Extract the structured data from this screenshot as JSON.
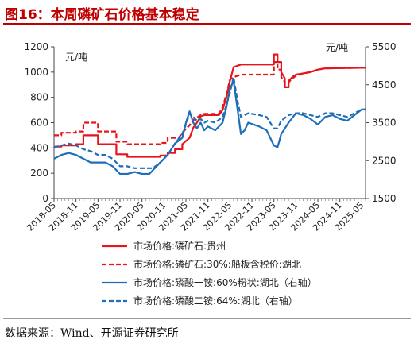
{
  "header": {
    "title": "图16：本周磷矿石价格基本稳定"
  },
  "footer": {
    "source": "数据来源：Wind、开源证券研究所"
  },
  "colors": {
    "title": "#c00000",
    "red": "#e8141c",
    "blue": "#1f6fb8"
  },
  "chart_data": {
    "type": "line",
    "title": "",
    "left_axis": {
      "unit_label": "元/吨",
      "range": [
        0,
        1200
      ],
      "ticks": [
        0,
        200,
        400,
        600,
        800,
        1000,
        1200
      ]
    },
    "right_axis": {
      "unit_label": "元/吨",
      "range": [
        1500,
        5500
      ],
      "ticks": [
        1500,
        2500,
        3500,
        4500,
        5500
      ]
    },
    "x_axis": {
      "range": [
        "2018-05",
        "2025-06"
      ],
      "tick_labels": [
        "2018-05",
        "2018-11",
        "2019-05",
        "2019-11",
        "2020-05",
        "2020-11",
        "2021-05",
        "2021-11",
        "2022-05",
        "2022-11",
        "2023-05",
        "2023-11",
        "2024-05",
        "2024-11",
        "2025-05"
      ]
    },
    "grid": false,
    "legend": {
      "placement": "bottom"
    },
    "series": [
      {
        "name": "市场价格:磷矿石:贵州",
        "axis": "left",
        "style": "solid",
        "color": "#e8141c",
        "points": [
          [
            "2018-05",
            410
          ],
          [
            "2018-07",
            410
          ],
          [
            "2018-07",
            420
          ],
          [
            "2018-11",
            420
          ],
          [
            "2018-11",
            430
          ],
          [
            "2019-01",
            430
          ],
          [
            "2019-01",
            500
          ],
          [
            "2019-05",
            500
          ],
          [
            "2019-05",
            430
          ],
          [
            "2019-10",
            430
          ],
          [
            "2019-10",
            350
          ],
          [
            "2020-01",
            350
          ],
          [
            "2020-01",
            330
          ],
          [
            "2020-10",
            330
          ],
          [
            "2020-10",
            340
          ],
          [
            "2020-12",
            340
          ],
          [
            "2020-12",
            360
          ],
          [
            "2021-02",
            360
          ],
          [
            "2021-02",
            390
          ],
          [
            "2021-04",
            390
          ],
          [
            "2021-04",
            430
          ],
          [
            "2021-06",
            480
          ],
          [
            "2021-07",
            560
          ],
          [
            "2021-08",
            600
          ],
          [
            "2021-09",
            650
          ],
          [
            "2021-10",
            660
          ],
          [
            "2022-02",
            660
          ],
          [
            "2022-03",
            700
          ],
          [
            "2022-04",
            800
          ],
          [
            "2022-05",
            930
          ],
          [
            "2022-06",
            1040
          ],
          [
            "2022-07",
            1050
          ],
          [
            "2022-08",
            1060
          ],
          [
            "2022-09",
            1060
          ],
          [
            "2023-05",
            1060
          ],
          [
            "2023-05",
            1140
          ],
          [
            "2023-06",
            1140
          ],
          [
            "2023-06",
            1080
          ],
          [
            "2023-07",
            1080
          ],
          [
            "2023-07",
            1000
          ],
          [
            "2023-08",
            950
          ],
          [
            "2023-08",
            880
          ],
          [
            "2023-09",
            880
          ],
          [
            "2023-09",
            930
          ],
          [
            "2023-10",
            960
          ],
          [
            "2023-11",
            980
          ],
          [
            "2024-01",
            990
          ],
          [
            "2024-03",
            1000
          ],
          [
            "2024-05",
            1020
          ],
          [
            "2024-07",
            1030
          ],
          [
            "2025-06",
            1035
          ]
        ]
      },
      {
        "name": "市场价格:磷矿石:30%:船板含税价:湖北",
        "axis": "left",
        "style": "dashed",
        "color": "#e8141c",
        "points": [
          [
            "2018-05",
            500
          ],
          [
            "2018-07",
            500
          ],
          [
            "2018-07",
            520
          ],
          [
            "2018-11",
            520
          ],
          [
            "2018-11",
            530
          ],
          [
            "2019-01",
            530
          ],
          [
            "2019-01",
            600
          ],
          [
            "2019-05",
            600
          ],
          [
            "2019-05",
            530
          ],
          [
            "2019-10",
            530
          ],
          [
            "2019-10",
            450
          ],
          [
            "2020-01",
            450
          ],
          [
            "2020-01",
            430
          ],
          [
            "2020-10",
            430
          ],
          [
            "2020-10",
            440
          ],
          [
            "2020-12",
            440
          ],
          [
            "2020-12",
            480
          ],
          [
            "2021-03",
            480
          ],
          [
            "2021-04",
            520
          ],
          [
            "2021-06",
            580
          ],
          [
            "2021-07",
            620
          ],
          [
            "2021-09",
            660
          ],
          [
            "2021-10",
            670
          ],
          [
            "2022-02",
            670
          ],
          [
            "2022-03",
            720
          ],
          [
            "2022-04",
            820
          ],
          [
            "2022-05",
            940
          ],
          [
            "2022-06",
            960
          ],
          [
            "2022-07",
            970
          ],
          [
            "2022-08",
            980
          ],
          [
            "2022-09",
            980
          ],
          [
            "2023-05",
            980
          ],
          [
            "2023-05",
            1080
          ],
          [
            "2023-06",
            1080
          ],
          [
            "2023-06",
            1020
          ],
          [
            "2023-07",
            1020
          ],
          [
            "2023-07",
            960
          ],
          [
            "2023-08",
            920
          ],
          [
            "2023-08",
            880
          ],
          [
            "2023-09",
            880
          ],
          [
            "2023-09",
            920
          ],
          [
            "2023-10",
            950
          ],
          [
            "2023-11",
            970
          ],
          [
            "2024-01",
            990
          ],
          [
            "2024-03",
            1000
          ],
          [
            "2024-05",
            1020
          ],
          [
            "2024-07",
            1030
          ],
          [
            "2025-06",
            1035
          ]
        ]
      },
      {
        "name": "市场价格:磷酸一铵:60%粉状:湖北（右轴）",
        "axis": "right",
        "style": "solid",
        "color": "#1f6fb8",
        "points": [
          [
            "2018-05",
            2550
          ],
          [
            "2018-07",
            2650
          ],
          [
            "2018-09",
            2700
          ],
          [
            "2018-11",
            2650
          ],
          [
            "2019-01",
            2550
          ],
          [
            "2019-03",
            2450
          ],
          [
            "2019-05",
            2450
          ],
          [
            "2019-07",
            2450
          ],
          [
            "2019-09",
            2350
          ],
          [
            "2019-11",
            2150
          ],
          [
            "2020-01",
            2150
          ],
          [
            "2020-03",
            2200
          ],
          [
            "2020-05",
            2150
          ],
          [
            "2020-07",
            2150
          ],
          [
            "2020-08",
            2250
          ],
          [
            "2020-10",
            2450
          ],
          [
            "2020-12",
            2650
          ],
          [
            "2021-02",
            2950
          ],
          [
            "2021-04",
            3100
          ],
          [
            "2021-05",
            3500
          ],
          [
            "2021-06",
            3800
          ],
          [
            "2021-07",
            3500
          ],
          [
            "2021-08",
            3350
          ],
          [
            "2021-09",
            3500
          ],
          [
            "2021-10",
            3300
          ],
          [
            "2021-11",
            3400
          ],
          [
            "2022-01",
            3300
          ],
          [
            "2022-03",
            3500
          ],
          [
            "2022-04",
            3900
          ],
          [
            "2022-05",
            4400
          ],
          [
            "2022-06",
            4600
          ],
          [
            "2022-07",
            3900
          ],
          [
            "2022-08",
            3200
          ],
          [
            "2022-09",
            3300
          ],
          [
            "2022-10",
            3500
          ],
          [
            "2023-01",
            3400
          ],
          [
            "2023-03",
            3300
          ],
          [
            "2023-05",
            2900
          ],
          [
            "2023-06",
            2850
          ],
          [
            "2023-07",
            3200
          ],
          [
            "2023-09",
            3500
          ],
          [
            "2023-11",
            3750
          ],
          [
            "2024-01",
            3700
          ],
          [
            "2024-03",
            3600
          ],
          [
            "2024-05",
            3450
          ],
          [
            "2024-07",
            3650
          ],
          [
            "2024-09",
            3700
          ],
          [
            "2024-11",
            3600
          ],
          [
            "2025-01",
            3550
          ],
          [
            "2025-03",
            3700
          ],
          [
            "2025-05",
            3850
          ],
          [
            "2025-06",
            3850
          ]
        ]
      },
      {
        "name": "市场价格:磷酸二铵:64%:湖北（右轴）",
        "axis": "right",
        "style": "dashed",
        "color": "#1f6fb8",
        "points": [
          [
            "2018-05",
            2850
          ],
          [
            "2018-07",
            2900
          ],
          [
            "2018-09",
            2950
          ],
          [
            "2018-11",
            2900
          ],
          [
            "2019-01",
            2800
          ],
          [
            "2019-03",
            2750
          ],
          [
            "2019-05",
            2650
          ],
          [
            "2019-07",
            2650
          ],
          [
            "2019-09",
            2550
          ],
          [
            "2019-11",
            2350
          ],
          [
            "2020-01",
            2350
          ],
          [
            "2020-03",
            2300
          ],
          [
            "2020-05",
            2300
          ],
          [
            "2020-08",
            2300
          ],
          [
            "2020-10",
            2450
          ],
          [
            "2020-12",
            2650
          ],
          [
            "2021-02",
            2950
          ],
          [
            "2021-04",
            3200
          ],
          [
            "2021-05",
            3450
          ],
          [
            "2021-06",
            3750
          ],
          [
            "2021-07",
            3650
          ],
          [
            "2021-08",
            3550
          ],
          [
            "2021-09",
            3600
          ],
          [
            "2021-10",
            3500
          ],
          [
            "2021-11",
            3550
          ],
          [
            "2022-01",
            3500
          ],
          [
            "2022-03",
            3650
          ],
          [
            "2022-04",
            3950
          ],
          [
            "2022-05",
            4300
          ],
          [
            "2022-06",
            4700
          ],
          [
            "2022-07",
            4100
          ],
          [
            "2022-08",
            3650
          ],
          [
            "2022-09",
            3700
          ],
          [
            "2022-10",
            3750
          ],
          [
            "2023-01",
            3700
          ],
          [
            "2023-03",
            3650
          ],
          [
            "2023-05",
            3350
          ],
          [
            "2023-06",
            3350
          ],
          [
            "2023-07",
            3550
          ],
          [
            "2023-09",
            3700
          ],
          [
            "2023-11",
            3750
          ],
          [
            "2024-01",
            3750
          ],
          [
            "2024-03",
            3700
          ],
          [
            "2024-05",
            3650
          ],
          [
            "2024-07",
            3750
          ],
          [
            "2024-09",
            3750
          ],
          [
            "2024-11",
            3700
          ],
          [
            "2025-01",
            3650
          ],
          [
            "2025-03",
            3750
          ],
          [
            "2025-05",
            3850
          ],
          [
            "2025-06",
            3850
          ]
        ]
      }
    ]
  }
}
